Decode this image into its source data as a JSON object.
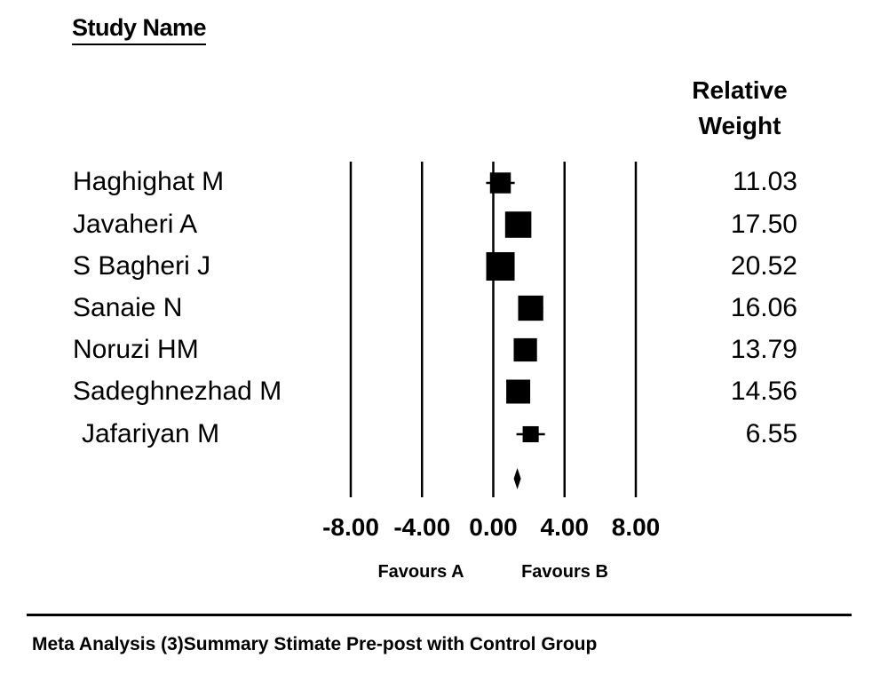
{
  "header": {
    "study_label": "Study Name",
    "weight_label": "Relative Weight"
  },
  "chart_data": {
    "type": "forest",
    "studies": [
      {
        "name": "Haghighat M",
        "effect": 0.4,
        "ci": [
          -0.4,
          1.2
        ],
        "weight": "11.03"
      },
      {
        "name": "Javaheri A",
        "effect": 1.4,
        "ci": [
          0.7,
          2.1
        ],
        "weight": "17.50"
      },
      {
        "name": "S Bagheri J",
        "effect": 0.4,
        "ci": [
          -0.3,
          1.1
        ],
        "weight": "20.52"
      },
      {
        "name": "Sanaie N",
        "effect": 2.1,
        "ci": [
          1.4,
          2.8
        ],
        "weight": "16.06"
      },
      {
        "name": "Noruzi HM",
        "effect": 1.8,
        "ci": [
          1.2,
          2.4
        ],
        "weight": "13.79"
      },
      {
        "name": "Sadeghnezhad M",
        "effect": 1.4,
        "ci": [
          0.8,
          2.0
        ],
        "weight": "14.56"
      },
      {
        "name": "Jafariyan M",
        "effect": 2.1,
        "ci": [
          1.3,
          2.9
        ],
        "weight": "6.55"
      }
    ],
    "summary": {
      "effect": 1.35,
      "ci": [
        1.15,
        1.55
      ]
    },
    "x_ticks": [
      "-8.00",
      "-4.00",
      "0.00",
      "4.00",
      "8.00"
    ],
    "x_tick_values": [
      -8,
      -4,
      0,
      4,
      8
    ],
    "xlim": [
      -8,
      8
    ],
    "favours_left": "Favours A",
    "favours_right": "Favours B"
  },
  "caption": "Meta Analysis (3)Summary Stimate Pre-post with Control Group"
}
